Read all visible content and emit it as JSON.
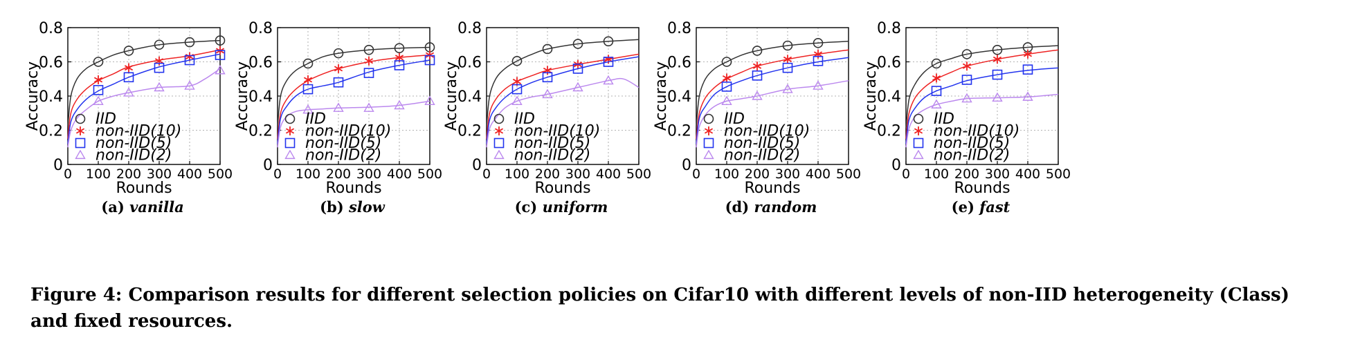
{
  "figure": {
    "caption": "Figure 4: Comparison results for different selection policies on Cifar10 with different levels of non-IID heterogeneity (Class) and fixed resources."
  },
  "series_styles": [
    {
      "name": "IID",
      "color": "#333333",
      "marker": "circle"
    },
    {
      "name": "non-IID(10)",
      "color": "#ee2222",
      "marker": "asterisk"
    },
    {
      "name": "non-IID(5)",
      "color": "#2233ee",
      "marker": "square"
    },
    {
      "name": "non-IID(2)",
      "color": "#bb88ee",
      "marker": "triangle"
    }
  ],
  "chart_data": [
    {
      "type": "line",
      "label": "(a)",
      "subtitle": "vanilla",
      "xlabel": "Rounds",
      "ylabel": "Accuracy",
      "xlim": [
        0,
        500
      ],
      "ylim": [
        0,
        0.8
      ],
      "xticks": [
        "0",
        "100",
        "200",
        "300",
        "400",
        "500"
      ],
      "yticks": [
        "0",
        "0.2",
        "0.4",
        "0.6",
        "0.8"
      ],
      "grid": true,
      "legend_position": "lower-left",
      "series": [
        {
          "name": "IID",
          "x": [
            0,
            10,
            30,
            60,
            100,
            150,
            200,
            300,
            400,
            500
          ],
          "y": [
            0.22,
            0.4,
            0.5,
            0.56,
            0.6,
            0.64,
            0.665,
            0.7,
            0.715,
            0.725
          ],
          "marker_x": [
            100,
            200,
            300,
            400,
            500
          ],
          "marker_y": [
            0.6,
            0.665,
            0.7,
            0.715,
            0.725
          ]
        },
        {
          "name": "non-IID(10)",
          "x": [
            0,
            10,
            30,
            60,
            100,
            150,
            200,
            300,
            400,
            500
          ],
          "y": [
            0.15,
            0.3,
            0.38,
            0.44,
            0.49,
            0.53,
            0.57,
            0.61,
            0.635,
            0.67
          ],
          "marker_x": [
            100,
            200,
            300,
            400,
            500
          ],
          "marker_y": [
            0.495,
            0.565,
            0.605,
            0.63,
            0.665
          ]
        },
        {
          "name": "non-IID(5)",
          "x": [
            0,
            10,
            30,
            60,
            100,
            150,
            200,
            300,
            400,
            500
          ],
          "y": [
            0.12,
            0.25,
            0.32,
            0.38,
            0.43,
            0.47,
            0.51,
            0.57,
            0.61,
            0.645
          ],
          "marker_x": [
            100,
            200,
            300,
            400,
            500
          ],
          "marker_y": [
            0.435,
            0.51,
            0.565,
            0.61,
            0.64
          ]
        },
        {
          "name": "non-IID(2)",
          "x": [
            0,
            10,
            30,
            60,
            100,
            150,
            200,
            300,
            400,
            450,
            500
          ],
          "y": [
            0.1,
            0.2,
            0.27,
            0.32,
            0.37,
            0.4,
            0.42,
            0.45,
            0.46,
            0.5,
            0.56
          ],
          "marker_x": [
            100,
            200,
            300,
            400,
            500
          ],
          "marker_y": [
            0.37,
            0.42,
            0.45,
            0.46,
            0.55
          ]
        }
      ]
    },
    {
      "type": "line",
      "label": "(b)",
      "subtitle": "slow",
      "xlabel": "Rounds",
      "ylabel": "Accuracy",
      "xlim": [
        0,
        500
      ],
      "ylim": [
        0,
        0.8
      ],
      "xticks": [
        "0",
        "100",
        "200",
        "300",
        "400",
        "500"
      ],
      "yticks": [
        "0",
        "0.2",
        "0.4",
        "0.6",
        "0.8"
      ],
      "grid": true,
      "legend_position": "lower-left",
      "series": [
        {
          "name": "IID",
          "x": [
            0,
            10,
            30,
            60,
            100,
            150,
            200,
            300,
            400,
            500
          ],
          "y": [
            0.22,
            0.4,
            0.49,
            0.55,
            0.59,
            0.63,
            0.65,
            0.67,
            0.68,
            0.685
          ],
          "marker_x": [
            100,
            200,
            300,
            400,
            500
          ],
          "marker_y": [
            0.59,
            0.65,
            0.67,
            0.68,
            0.685
          ]
        },
        {
          "name": "non-IID(10)",
          "x": [
            0,
            10,
            30,
            60,
            100,
            150,
            200,
            300,
            400,
            500
          ],
          "y": [
            0.15,
            0.3,
            0.38,
            0.44,
            0.49,
            0.53,
            0.56,
            0.6,
            0.625,
            0.64
          ],
          "marker_x": [
            100,
            200,
            300,
            400,
            500
          ],
          "marker_y": [
            0.495,
            0.56,
            0.605,
            0.625,
            0.64
          ]
        },
        {
          "name": "non-IID(5)",
          "x": [
            0,
            10,
            30,
            60,
            100,
            150,
            200,
            300,
            400,
            500
          ],
          "y": [
            0.12,
            0.27,
            0.34,
            0.4,
            0.44,
            0.46,
            0.48,
            0.54,
            0.58,
            0.61
          ],
          "marker_x": [
            100,
            200,
            300,
            400,
            500
          ],
          "marker_y": [
            0.44,
            0.48,
            0.535,
            0.58,
            0.61
          ]
        },
        {
          "name": "non-IID(2)",
          "x": [
            0,
            10,
            30,
            60,
            100,
            150,
            200,
            300,
            400,
            500
          ],
          "y": [
            0.1,
            0.22,
            0.28,
            0.31,
            0.32,
            0.325,
            0.33,
            0.335,
            0.345,
            0.37
          ],
          "marker_x": [
            100,
            200,
            300,
            400,
            500
          ],
          "marker_y": [
            0.32,
            0.33,
            0.33,
            0.345,
            0.37
          ]
        }
      ]
    },
    {
      "type": "line",
      "label": "(c)",
      "subtitle": "uniform",
      "xlabel": "Rounds",
      "ylabel": "Accuracy",
      "xlim": [
        0,
        500
      ],
      "ylim": [
        0,
        0.8
      ],
      "xticks": [
        "0",
        "100",
        "200",
        "300",
        "400",
        "500"
      ],
      "yticks": [
        "0",
        "0.2",
        "0.4",
        "0.6",
        "0.8"
      ],
      "grid": true,
      "legend_position": "lower-left",
      "series": [
        {
          "name": "IID",
          "x": [
            0,
            10,
            30,
            60,
            100,
            150,
            200,
            300,
            400,
            500
          ],
          "y": [
            0.22,
            0.4,
            0.5,
            0.56,
            0.605,
            0.645,
            0.675,
            0.705,
            0.72,
            0.73
          ],
          "marker_x": [
            100,
            200,
            300,
            400
          ],
          "marker_y": [
            0.605,
            0.675,
            0.705,
            0.72
          ]
        },
        {
          "name": "non-IID(10)",
          "x": [
            0,
            10,
            30,
            60,
            100,
            150,
            200,
            300,
            400,
            500
          ],
          "y": [
            0.15,
            0.3,
            0.38,
            0.44,
            0.485,
            0.52,
            0.55,
            0.585,
            0.615,
            0.645
          ],
          "marker_x": [
            100,
            200,
            300,
            400
          ],
          "marker_y": [
            0.485,
            0.55,
            0.585,
            0.615
          ]
        },
        {
          "name": "non-IID(5)",
          "x": [
            0,
            10,
            30,
            60,
            100,
            150,
            200,
            300,
            400,
            500
          ],
          "y": [
            0.12,
            0.26,
            0.33,
            0.39,
            0.44,
            0.48,
            0.51,
            0.56,
            0.6,
            0.63
          ],
          "marker_x": [
            100,
            200,
            300,
            400
          ],
          "marker_y": [
            0.44,
            0.51,
            0.56,
            0.6
          ]
        },
        {
          "name": "non-IID(2)",
          "x": [
            0,
            10,
            30,
            60,
            100,
            150,
            200,
            300,
            400,
            450,
            500
          ],
          "y": [
            0.1,
            0.21,
            0.27,
            0.33,
            0.37,
            0.395,
            0.41,
            0.45,
            0.49,
            0.5,
            0.45
          ],
          "marker_x": [
            100,
            200,
            300,
            400
          ],
          "marker_y": [
            0.37,
            0.41,
            0.45,
            0.49
          ]
        }
      ]
    },
    {
      "type": "line",
      "label": "(d)",
      "subtitle": "random",
      "xlabel": "Rounds",
      "ylabel": "Accuracy",
      "xlim": [
        0,
        500
      ],
      "ylim": [
        0,
        0.8
      ],
      "xticks": [
        "0",
        "100",
        "200",
        "300",
        "400",
        "500"
      ],
      "yticks": [
        "0",
        "0.2",
        "0.4",
        "0.6",
        "0.8"
      ],
      "grid": true,
      "legend_position": "lower-left",
      "series": [
        {
          "name": "IID",
          "x": [
            0,
            10,
            30,
            60,
            100,
            150,
            200,
            300,
            400,
            500
          ],
          "y": [
            0.22,
            0.4,
            0.5,
            0.56,
            0.6,
            0.64,
            0.665,
            0.695,
            0.71,
            0.72
          ],
          "marker_x": [
            100,
            200,
            300,
            400
          ],
          "marker_y": [
            0.6,
            0.665,
            0.695,
            0.71
          ]
        },
        {
          "name": "non-IID(10)",
          "x": [
            0,
            10,
            30,
            60,
            100,
            150,
            200,
            300,
            400,
            500
          ],
          "y": [
            0.15,
            0.3,
            0.39,
            0.45,
            0.5,
            0.54,
            0.575,
            0.615,
            0.645,
            0.67
          ],
          "marker_x": [
            100,
            200,
            300,
            400
          ],
          "marker_y": [
            0.505,
            0.575,
            0.615,
            0.645
          ]
        },
        {
          "name": "non-IID(5)",
          "x": [
            0,
            10,
            30,
            60,
            100,
            150,
            200,
            300,
            400,
            500
          ],
          "y": [
            0.12,
            0.27,
            0.34,
            0.41,
            0.455,
            0.49,
            0.52,
            0.565,
            0.6,
            0.625
          ],
          "marker_x": [
            100,
            200,
            300,
            400
          ],
          "marker_y": [
            0.455,
            0.52,
            0.565,
            0.605
          ]
        },
        {
          "name": "non-IID(2)",
          "x": [
            0,
            10,
            30,
            60,
            100,
            150,
            200,
            300,
            400,
            500
          ],
          "y": [
            0.1,
            0.22,
            0.29,
            0.34,
            0.37,
            0.385,
            0.4,
            0.44,
            0.46,
            0.49
          ],
          "marker_x": [
            100,
            200,
            300,
            400
          ],
          "marker_y": [
            0.37,
            0.4,
            0.44,
            0.46
          ]
        }
      ]
    },
    {
      "type": "line",
      "label": "(e)",
      "subtitle": "fast",
      "xlabel": "Rounds",
      "ylabel": "Accuracy",
      "xlim": [
        0,
        500
      ],
      "ylim": [
        0,
        0.8
      ],
      "xticks": [
        "0",
        "100",
        "200",
        "300",
        "400",
        "500"
      ],
      "yticks": [
        "0",
        "0.2",
        "0.4",
        "0.6",
        "0.8"
      ],
      "grid": true,
      "legend_position": "lower-left",
      "series": [
        {
          "name": "IID",
          "x": [
            0,
            10,
            30,
            60,
            100,
            150,
            200,
            300,
            400,
            500
          ],
          "y": [
            0.21,
            0.38,
            0.47,
            0.54,
            0.59,
            0.62,
            0.645,
            0.67,
            0.685,
            0.695
          ],
          "marker_x": [
            100,
            200,
            300,
            400
          ],
          "marker_y": [
            0.59,
            0.645,
            0.67,
            0.685
          ]
        },
        {
          "name": "non-IID(10)",
          "x": [
            0,
            10,
            30,
            60,
            100,
            150,
            200,
            300,
            400,
            500
          ],
          "y": [
            0.15,
            0.3,
            0.39,
            0.45,
            0.5,
            0.54,
            0.575,
            0.615,
            0.645,
            0.67
          ],
          "marker_x": [
            100,
            200,
            300,
            400
          ],
          "marker_y": [
            0.505,
            0.575,
            0.615,
            0.645
          ]
        },
        {
          "name": "non-IID(5)",
          "x": [
            0,
            10,
            30,
            60,
            100,
            150,
            200,
            300,
            400,
            500
          ],
          "y": [
            0.12,
            0.26,
            0.33,
            0.39,
            0.43,
            0.46,
            0.49,
            0.525,
            0.55,
            0.565
          ],
          "marker_x": [
            100,
            200,
            300,
            400
          ],
          "marker_y": [
            0.43,
            0.495,
            0.525,
            0.555
          ]
        },
        {
          "name": "non-IID(2)",
          "x": [
            0,
            10,
            30,
            60,
            100,
            150,
            200,
            300,
            400,
            500
          ],
          "y": [
            0.1,
            0.21,
            0.28,
            0.32,
            0.35,
            0.37,
            0.385,
            0.39,
            0.395,
            0.41
          ],
          "marker_x": [
            100,
            200,
            300,
            400
          ],
          "marker_y": [
            0.35,
            0.385,
            0.39,
            0.395
          ]
        }
      ]
    }
  ]
}
